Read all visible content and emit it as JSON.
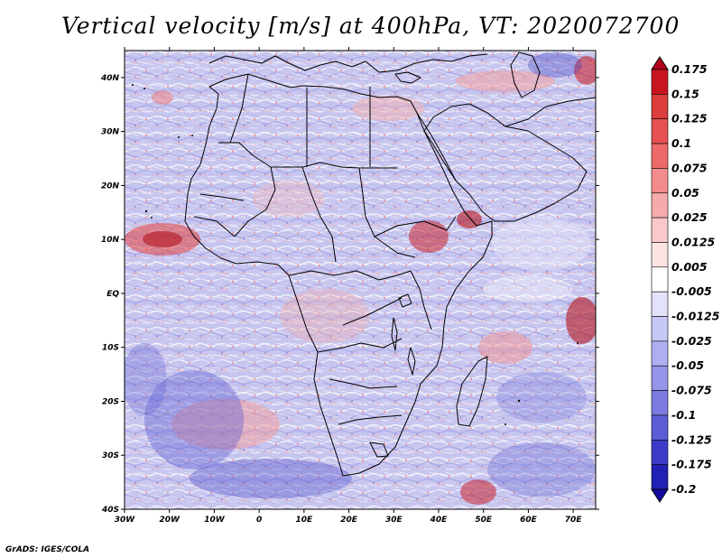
{
  "title": "Vertical velocity [m/s] at 400hPa, VT: 2020072700",
  "credit": "GrADS: IGES/COLA",
  "map": {
    "lat_labels": [
      "40N",
      "30N",
      "20N",
      "10N",
      "EQ",
      "10S",
      "20S",
      "30S",
      "40S"
    ],
    "lat_values": [
      40,
      30,
      20,
      10,
      0,
      -10,
      -20,
      -30,
      -40
    ],
    "lon_labels": [
      "30W",
      "20W",
      "10W",
      "0",
      "10E",
      "20E",
      "30E",
      "40E",
      "50E",
      "60E",
      "70E"
    ],
    "lon_values": [
      -30,
      -20,
      -10,
      0,
      10,
      20,
      30,
      40,
      50,
      60,
      70
    ],
    "extent": {
      "lon_min": -30,
      "lon_max": 75,
      "lat_min": -40,
      "lat_max": 45
    },
    "features": [
      "Africa",
      "Arabian Peninsula",
      "Madagascar",
      "Mediterranean Sea",
      "Red Sea",
      "Caspian Sea",
      "Lake Victoria",
      "Lake Tanganyika",
      "Lake Malawi"
    ]
  },
  "colorbar": {
    "labels": [
      "0.175",
      "0.15",
      "0.125",
      "0.1",
      "0.075",
      "0.05",
      "0.025",
      "0.0125",
      "0.005",
      "-0.005",
      "-0.0125",
      "-0.025",
      "-0.05",
      "-0.075",
      "-0.1",
      "-0.125",
      "-0.175",
      "-0.2"
    ],
    "colors": [
      "#b0001e",
      "#c8141e",
      "#dc3c3c",
      "#e65050",
      "#ee6a6a",
      "#f28c8c",
      "#f6aaaa",
      "#fac8c8",
      "#fde4e4",
      "#ffffff",
      "#e2e2fa",
      "#c8c8f5",
      "#aeaef0",
      "#9494e8",
      "#7a7ae0",
      "#5c5cd6",
      "#3c3cc8",
      "#2020b4",
      "#120aa0"
    ]
  },
  "colors": {
    "background": "#ffffff",
    "map_base": "#c9c8ef",
    "coast": "#000000"
  }
}
